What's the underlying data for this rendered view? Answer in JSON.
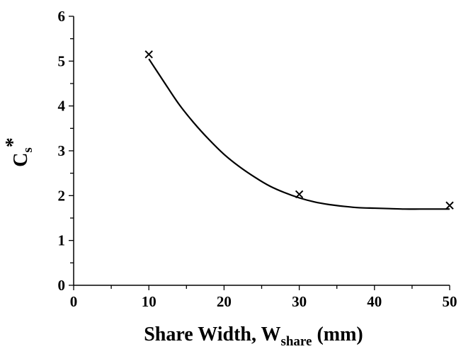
{
  "chart_data": {
    "type": "scatter",
    "xlabel": {
      "main": "Share Width, W",
      "sub": "share",
      "unit": " (mm)"
    },
    "ylabel": {
      "main": "C",
      "sub": "s",
      "sup": "*"
    },
    "xlim": [
      0,
      50
    ],
    "ylim": [
      0,
      6
    ],
    "x_ticks": [
      "0",
      "10",
      "20",
      "30",
      "40",
      "50"
    ],
    "y_ticks": [
      "0",
      "1",
      "2",
      "3",
      "4",
      "5",
      "6"
    ],
    "grid": false,
    "series": [
      {
        "marker": "x",
        "points": [
          [
            10,
            5.15
          ],
          [
            30,
            2.03
          ],
          [
            50,
            1.78
          ]
        ]
      }
    ],
    "trendline": {
      "type": "polynomial",
      "x": [
        10,
        12,
        14,
        16,
        18,
        20,
        22,
        24,
        26,
        28,
        30,
        32,
        34,
        36,
        38,
        40,
        42,
        44,
        46,
        48,
        50
      ],
      "y": [
        5.05,
        4.54,
        4.04,
        3.62,
        3.25,
        2.92,
        2.65,
        2.42,
        2.22,
        2.07,
        1.95,
        1.86,
        1.8,
        1.76,
        1.73,
        1.72,
        1.71,
        1.7,
        1.7,
        1.7,
        1.7
      ]
    },
    "colors": {
      "axis": "#000000",
      "marker": "#000000",
      "trendline": "#000000"
    }
  }
}
